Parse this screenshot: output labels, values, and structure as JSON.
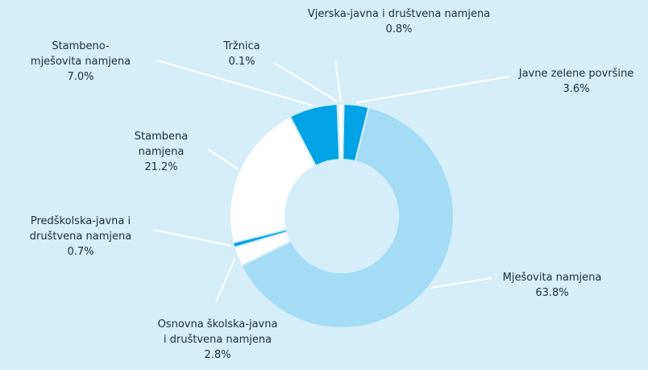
{
  "chart_data": {
    "type": "pie",
    "categories": [
      "Javne zelene površine",
      "Mješovita namjena",
      "Osnovna školska-javna i društvena namjena",
      "Predškolska-javna i društvena namjena",
      "Stambena namjena",
      "Stambeno-mješovita namjena",
      "Tržnica",
      "Vjerska-javna i društvena namjena"
    ],
    "values": [
      3.6,
      63.8,
      2.8,
      0.7,
      21.2,
      7.0,
      0.1,
      0.8
    ],
    "value_labels": [
      "3.6%",
      "63.8%",
      "2.8%",
      "0.7%",
      "21.2%",
      "7.0%",
      "0.1%",
      "0.8%"
    ],
    "colors": [
      "#00a3e4",
      "#a4dcf6",
      "#ffffff",
      "#00a3e4",
      "#ffffff",
      "#00a3e4",
      "#ffffff",
      "#ffffff"
    ]
  }
}
